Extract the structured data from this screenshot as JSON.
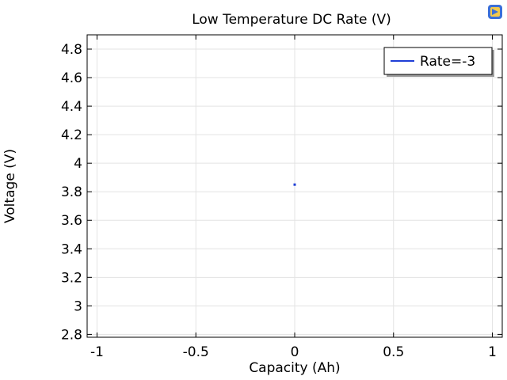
{
  "chart_data": {
    "type": "line",
    "title": "Low Temperature DC Rate (V)",
    "xlabel": "Capacity (Ah)",
    "ylabel": "Voltage (V)",
    "xlim": [
      -1.05,
      1.05
    ],
    "ylim": [
      2.78,
      4.9
    ],
    "x_ticks": [
      -1,
      -0.5,
      0,
      0.5,
      1
    ],
    "x_tick_labels": [
      "-1",
      "-0.5",
      "0",
      "0.5",
      "1"
    ],
    "y_ticks": [
      2.8,
      3,
      3.2,
      3.4,
      3.6,
      3.8,
      4,
      4.2,
      4.4,
      4.6,
      4.8
    ],
    "y_tick_labels": [
      "2.8",
      "3",
      "3.2",
      "3.4",
      "3.6",
      "3.8",
      "4",
      "4.2",
      "4.4",
      "4.6",
      "4.8"
    ],
    "grid": true,
    "legend_position": "top-right",
    "series": [
      {
        "name": "Rate=-3",
        "color": "#1f3fd6",
        "x": [
          0
        ],
        "y": [
          3.85
        ]
      }
    ]
  },
  "colors": {
    "grid": "#e3e3e3",
    "axis": "#000000",
    "series": "#1f3fd6",
    "icon_blue": "#3b6fd8",
    "icon_yellow": "#f2c94c"
  },
  "icons": {
    "toolbar": "comsol-plot-icon"
  }
}
